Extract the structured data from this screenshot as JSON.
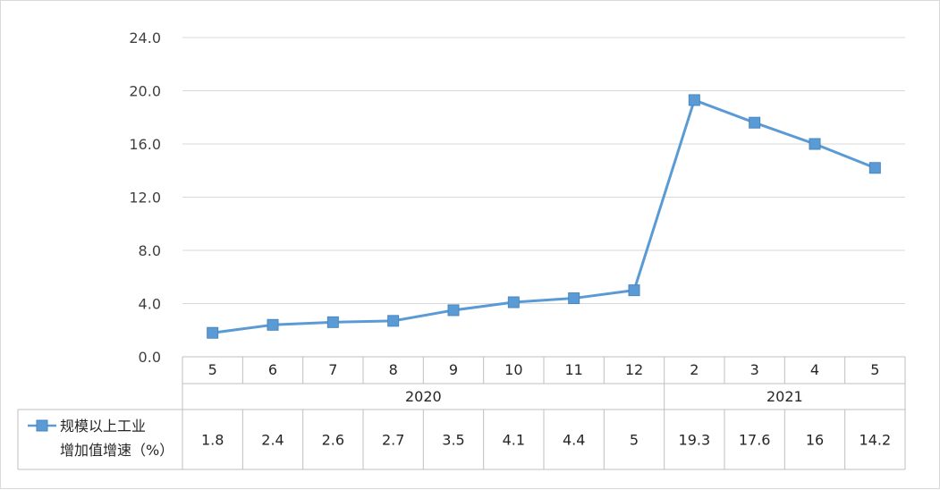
{
  "chart_data": {
    "type": "line",
    "series": [
      {
        "name": "规模以上工业增加值增速（%）",
        "name_lines": [
          "规模以上工业",
          "增加值增速（%）"
        ],
        "values": [
          1.8,
          2.4,
          2.6,
          2.7,
          3.5,
          4.1,
          4.4,
          5,
          19.3,
          17.6,
          16,
          14.2
        ],
        "display_values": [
          "1.8",
          "2.4",
          "2.6",
          "2.7",
          "3.5",
          "4.1",
          "4.4",
          "5",
          "19.3",
          "17.6",
          "16",
          "14.2"
        ]
      }
    ],
    "categories": [
      "5",
      "6",
      "7",
      "8",
      "9",
      "10",
      "11",
      "12",
      "2",
      "3",
      "4",
      "5"
    ],
    "groups": [
      {
        "label": "2020",
        "count": 8
      },
      {
        "label": "2021",
        "count": 4
      }
    ],
    "ylim": [
      0,
      24
    ],
    "y_ticks": [
      "0.0",
      "4.0",
      "8.0",
      "12.0",
      "16.0",
      "20.0",
      "24.0"
    ],
    "grid": true,
    "legend_position": "bottom-left, in data table",
    "colors": {
      "series": "#5b9bd5",
      "grid": "#d9d9d9",
      "table_border": "#bfbfbf"
    }
  }
}
